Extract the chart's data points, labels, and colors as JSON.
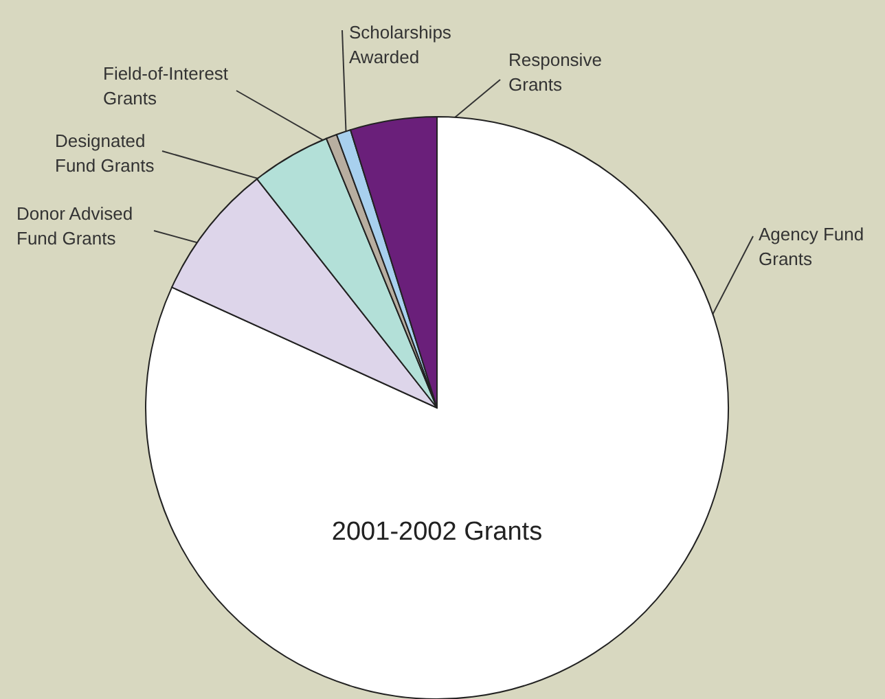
{
  "chart_data": {
    "type": "pie",
    "title": "2001-2002 Grants",
    "categories": [
      "Agency Fund\nGrants",
      "Donor Advised\nFund Grants",
      "Designated\nFund Grants",
      "Field-of-Interest\nGrants",
      "Scholarships\nAwarded",
      "Responsive\nGrants"
    ],
    "values": [
      81.8,
      7.6,
      4.4,
      0.6,
      0.8,
      4.8
    ],
    "colors": [
      "#ffffff",
      "#ddd5ea",
      "#b3e0d8",
      "#b8aea0",
      "#a8d0ee",
      "#6a1f7a"
    ]
  }
}
